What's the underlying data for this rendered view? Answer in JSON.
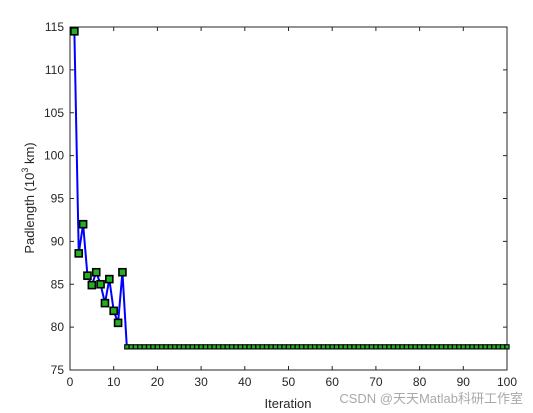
{
  "chart_data": {
    "type": "line",
    "xlabel": "Iteration",
    "ylabel_prefix": "Padlength (10",
    "ylabel_exp": "3",
    "ylabel_suffix": " km)",
    "xlim": [
      0,
      100
    ],
    "ylim": [
      75,
      115
    ],
    "xticks": [
      0,
      10,
      20,
      30,
      40,
      50,
      60,
      70,
      80,
      90,
      100
    ],
    "yticks": [
      75,
      80,
      85,
      90,
      95,
      100,
      105,
      110,
      115
    ],
    "grid": false,
    "line_color": "#0000ff",
    "marker_fill": "#22b022",
    "marker_edge": "#000000",
    "series": [
      {
        "x_start": 1,
        "values": [
          114.5,
          88.6,
          92.0,
          86.0,
          84.9,
          86.4,
          85.0,
          82.8,
          85.6,
          81.9,
          80.5,
          86.4,
          77.7
        ]
      }
    ],
    "plateau": {
      "value": 77.7,
      "x_from": 13,
      "x_to": 100
    }
  },
  "watermark": "CSDN @天天Matlab科研工作室"
}
